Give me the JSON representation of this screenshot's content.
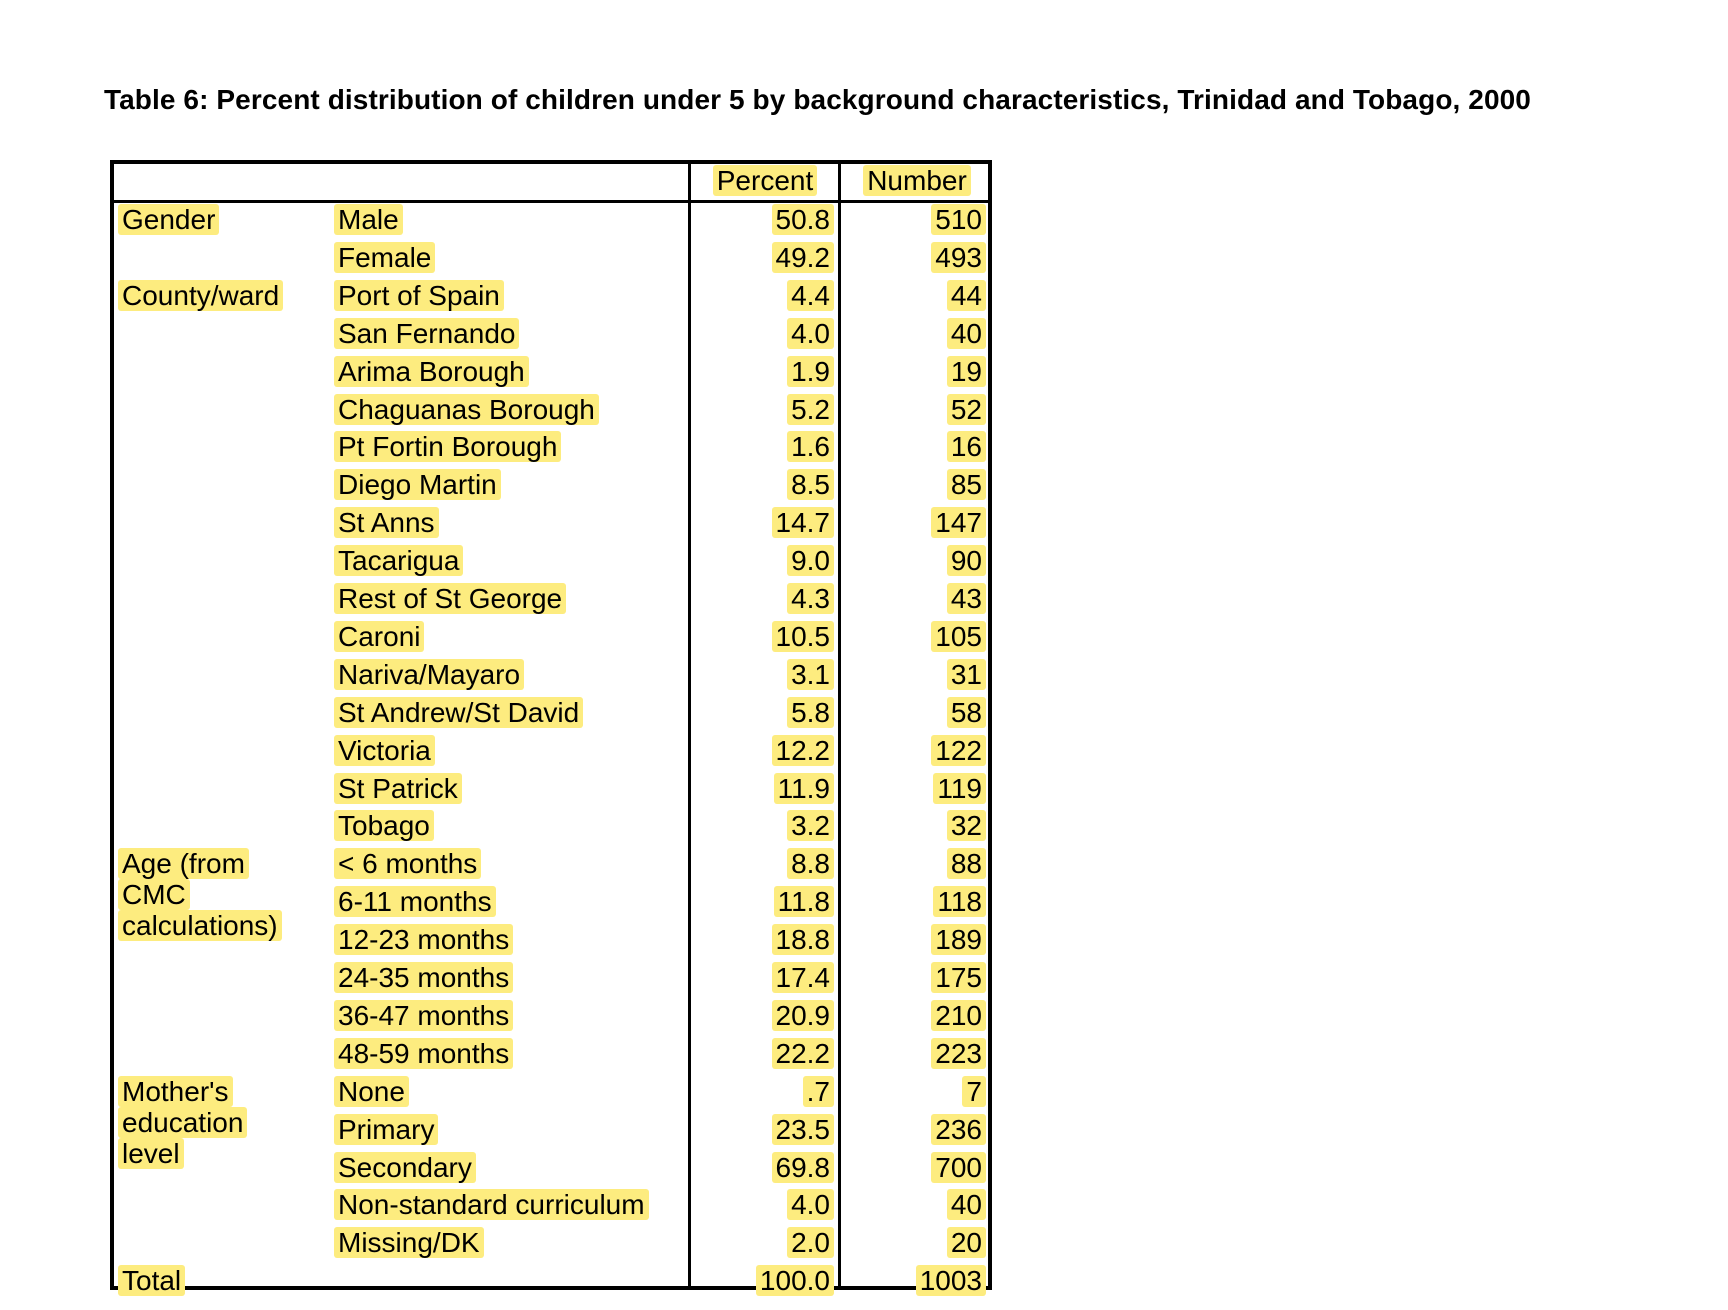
{
  "title": "Table 6: Percent distribution of children under 5 by background characteristics, Trinidad and Tobago, 2000",
  "columns": {
    "percent": "Percent",
    "number": "Number"
  },
  "groups": [
    {
      "label": "Gender",
      "start": 0
    },
    {
      "label": "County/ward",
      "start": 2
    },
    {
      "label": "Age (from CMC calculations)",
      "start": 17
    },
    {
      "label": "Mother's education level",
      "start": 23
    },
    {
      "label": "Total",
      "start": 28
    }
  ],
  "rows": [
    {
      "label": "Male",
      "percent": "50.8",
      "number": "510"
    },
    {
      "label": "Female",
      "percent": "49.2",
      "number": "493"
    },
    {
      "label": "Port of Spain",
      "percent": "4.4",
      "number": "44"
    },
    {
      "label": "San Fernando",
      "percent": "4.0",
      "number": "40"
    },
    {
      "label": "Arima Borough",
      "percent": "1.9",
      "number": "19"
    },
    {
      "label": "Chaguanas Borough",
      "percent": "5.2",
      "number": "52"
    },
    {
      "label": "Pt Fortin Borough",
      "percent": "1.6",
      "number": "16"
    },
    {
      "label": "Diego Martin",
      "percent": "8.5",
      "number": "85"
    },
    {
      "label": "St Anns",
      "percent": "14.7",
      "number": "147"
    },
    {
      "label": "Tacarigua",
      "percent": "9.0",
      "number": "90"
    },
    {
      "label": "Rest of St George",
      "percent": "4.3",
      "number": "43"
    },
    {
      "label": "Caroni",
      "percent": "10.5",
      "number": "105"
    },
    {
      "label": "Nariva/Mayaro",
      "percent": "3.1",
      "number": "31"
    },
    {
      "label": "St Andrew/St David",
      "percent": "5.8",
      "number": "58"
    },
    {
      "label": "Victoria",
      "percent": "12.2",
      "number": "122"
    },
    {
      "label": "St Patrick",
      "percent": "11.9",
      "number": "119"
    },
    {
      "label": "Tobago",
      "percent": "3.2",
      "number": "32"
    },
    {
      "label": "< 6 months",
      "percent": "8.8",
      "number": "88"
    },
    {
      "label": "6-11 months",
      "percent": "11.8",
      "number": "118"
    },
    {
      "label": "12-23 months",
      "percent": "18.8",
      "number": "189"
    },
    {
      "label": "24-35 months",
      "percent": "17.4",
      "number": "175"
    },
    {
      "label": "36-47 months",
      "percent": "20.9",
      "number": "210"
    },
    {
      "label": "48-59 months",
      "percent": "22.2",
      "number": "223"
    },
    {
      "label": "None",
      "percent": ".7",
      "number": "7"
    },
    {
      "label": "Primary",
      "percent": "23.5",
      "number": "236"
    },
    {
      "label": "Secondary",
      "percent": "69.8",
      "number": "700"
    },
    {
      "label": "Non-standard curriculum",
      "percent": "4.0",
      "number": "40"
    },
    {
      "label": "Missing/DK",
      "percent": "2.0",
      "number": "20"
    },
    {
      "label": "",
      "percent": "100.0",
      "number": "1003"
    }
  ],
  "highlight_color": "#fdec7f"
}
